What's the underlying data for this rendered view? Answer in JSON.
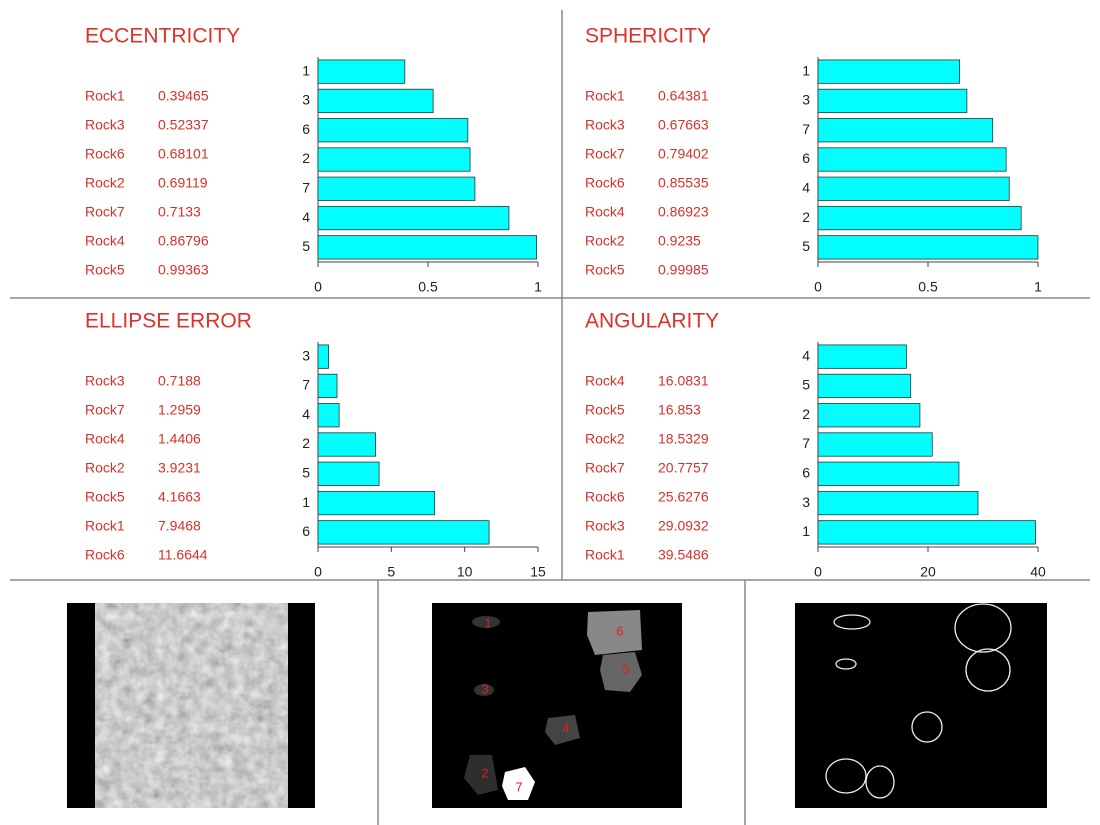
{
  "chart_data": [
    {
      "type": "bar",
      "orientation": "horizontal",
      "title": "ECCENTRICITY",
      "labels": [
        "Rock1",
        "Rock3",
        "Rock6",
        "Rock2",
        "Rock7",
        "Rock4",
        "Rock5"
      ],
      "categories": [
        "1",
        "3",
        "6",
        "2",
        "7",
        "4",
        "5"
      ],
      "values": [
        0.39465,
        0.52337,
        0.68101,
        0.69119,
        0.7133,
        0.86796,
        0.99363
      ],
      "color": "#00ffff",
      "xlim": [
        0,
        1
      ],
      "xticks": [
        0,
        0.5,
        1
      ]
    },
    {
      "type": "bar",
      "orientation": "horizontal",
      "title": "SPHERICITY",
      "labels": [
        "Rock1",
        "Rock3",
        "Rock7",
        "Rock6",
        "Rock4",
        "Rock2",
        "Rock5"
      ],
      "categories": [
        "1",
        "3",
        "7",
        "6",
        "4",
        "2",
        "5"
      ],
      "values": [
        0.64381,
        0.67663,
        0.79402,
        0.85535,
        0.86923,
        0.9235,
        0.99985
      ],
      "color": "#00ffff",
      "xlim": [
        0,
        1
      ],
      "xticks": [
        0,
        0.5,
        1
      ]
    },
    {
      "type": "bar",
      "orientation": "horizontal",
      "title": "ELLIPSE ERROR",
      "labels": [
        "Rock3",
        "Rock7",
        "Rock4",
        "Rock2",
        "Rock5",
        "Rock1",
        "Rock6"
      ],
      "categories": [
        "3",
        "7",
        "4",
        "2",
        "5",
        "1",
        "6"
      ],
      "values": [
        0.7188,
        1.2959,
        1.4406,
        3.9231,
        4.1663,
        7.9468,
        11.6644
      ],
      "color": "#00ffff",
      "xlim": [
        0,
        15
      ],
      "xticks": [
        0,
        5,
        10,
        15
      ]
    },
    {
      "type": "bar",
      "orientation": "horizontal",
      "title": "ANGULARITY",
      "labels": [
        "Rock4",
        "Rock5",
        "Rock2",
        "Rock7",
        "Rock6",
        "Rock3",
        "Rock1"
      ],
      "categories": [
        "4",
        "5",
        "2",
        "7",
        "6",
        "3",
        "1"
      ],
      "values": [
        16.0831,
        16.853,
        18.5329,
        20.7757,
        25.6276,
        29.0932,
        39.5486
      ],
      "color": "#00ffff",
      "xlim": [
        0,
        40
      ],
      "xticks": [
        0,
        20,
        40
      ]
    }
  ],
  "segmentation": {
    "labels": [
      "1",
      "6",
      "3",
      "5",
      "4",
      "2",
      "7"
    ]
  }
}
